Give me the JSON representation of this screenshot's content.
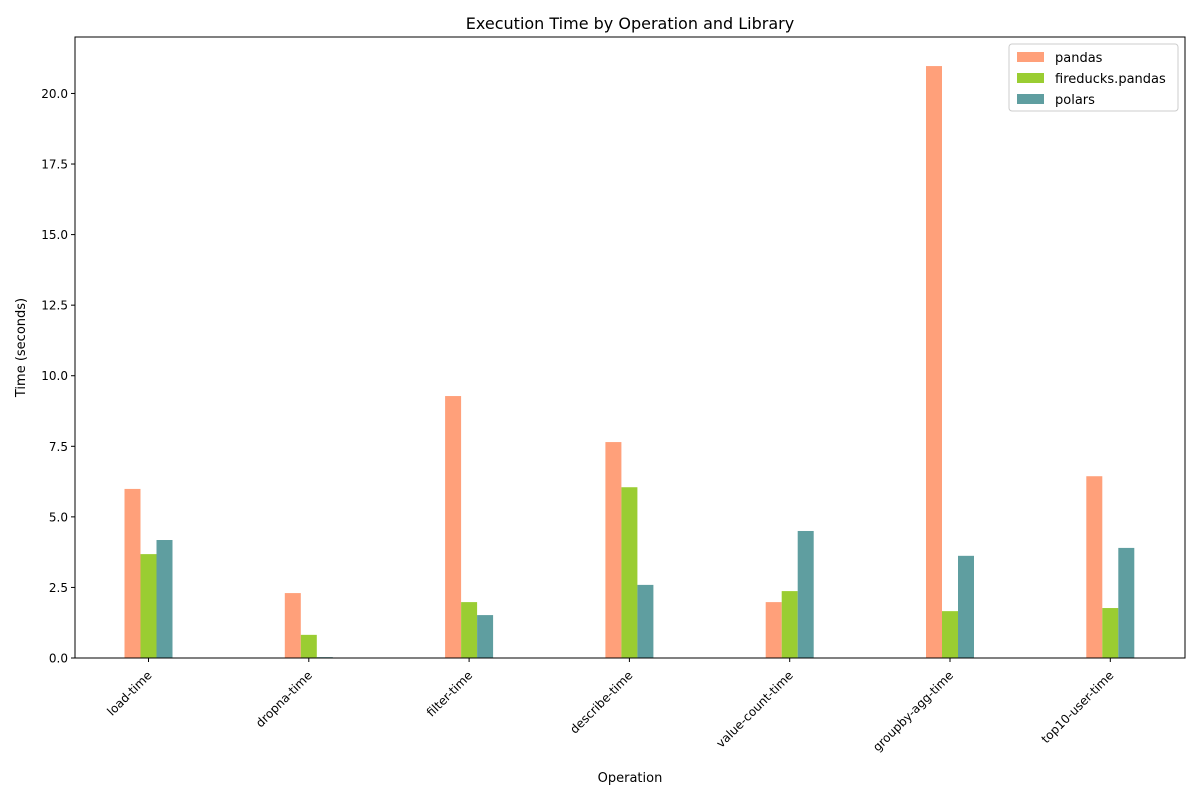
{
  "chart_data": {
    "type": "bar",
    "title": "Execution Time by Operation and Library",
    "xlabel": "Operation",
    "ylabel": "Time (seconds)",
    "categories": [
      "load-time",
      "dropna-time",
      "filter-time",
      "describe-time",
      "value-count-time",
      "groupby-agg-time",
      "top10-user-time"
    ],
    "series": [
      {
        "name": "pandas",
        "color": "#FFA07A",
        "values": [
          5.99,
          2.3,
          9.28,
          7.65,
          1.98,
          20.97,
          6.44
        ]
      },
      {
        "name": "fireducks.pandas",
        "color": "#9ACD32",
        "values": [
          3.68,
          0.82,
          1.98,
          6.05,
          2.37,
          1.66,
          1.77
        ]
      },
      {
        "name": "polars",
        "color": "#5F9EA0",
        "values": [
          4.18,
          0.03,
          1.52,
          2.59,
          4.5,
          3.62,
          3.9
        ]
      }
    ],
    "ylim": [
      0,
      22.0
    ],
    "yticks": [
      0.0,
      2.5,
      5.0,
      7.5,
      10.0,
      12.5,
      15.0,
      17.5,
      20.0
    ],
    "ytick_labels": [
      "0.0",
      "2.5",
      "5.0",
      "7.5",
      "10.0",
      "12.5",
      "15.0",
      "17.5",
      "20.0"
    ],
    "grid": false,
    "legend_position": "top-right"
  }
}
